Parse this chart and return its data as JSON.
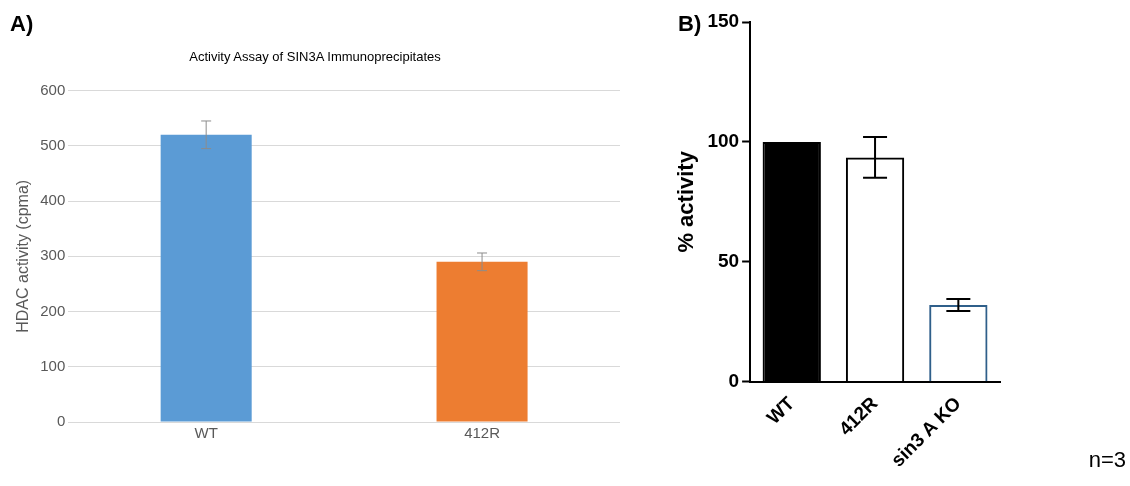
{
  "chart_data": [
    {
      "type": "bar",
      "title": "Activity Assay of SIN3A Immunoprecipitates",
      "ylabel": "HDAC activity (cpma)",
      "categories": [
        "WT",
        "412R"
      ],
      "values": [
        520,
        290
      ],
      "errors": [
        25,
        16
      ],
      "colors": [
        "#5b9bd5",
        "#ed7d31"
      ],
      "ylim": [
        0,
        600
      ],
      "yticks": [
        0,
        100,
        200,
        300,
        400,
        500,
        600
      ],
      "grid": "y",
      "annotations": [
        "A)"
      ]
    },
    {
      "type": "bar",
      "ylabel": "% activity",
      "categories": [
        "WT",
        "412R",
        "sin3 A KO"
      ],
      "values": [
        100,
        93.5,
        32
      ],
      "errors": [
        null,
        8.5,
        2.5
      ],
      "colors": [
        "#000000",
        "#000000",
        "#2f5f8a"
      ],
      "ylim": [
        0,
        150
      ],
      "yticks": [
        0,
        50,
        100,
        150
      ],
      "annotations": [
        "B)",
        "n=3"
      ]
    }
  ]
}
